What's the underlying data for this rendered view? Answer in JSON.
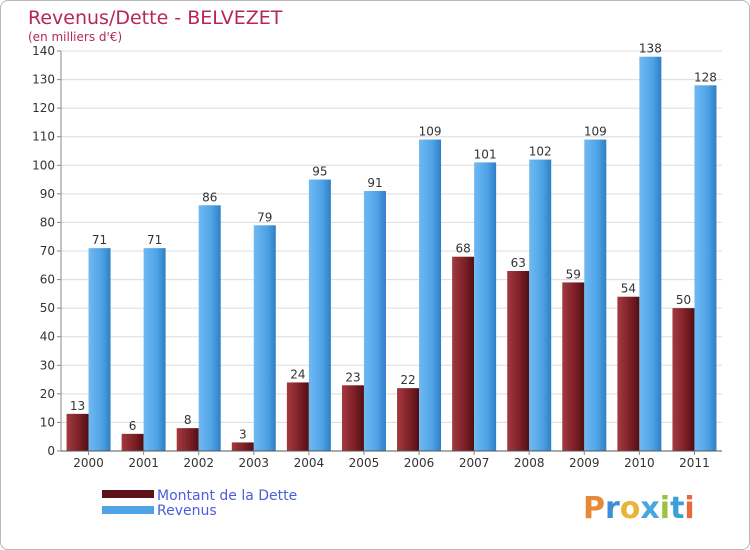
{
  "chart_data": {
    "type": "bar",
    "title": "Revenus/Dette - BELVEZET",
    "subtitle": "(en milliers d'€)",
    "categories": [
      "2000",
      "2001",
      "2002",
      "2003",
      "2004",
      "2005",
      "2006",
      "2007",
      "2008",
      "2009",
      "2010",
      "2011"
    ],
    "series": [
      {
        "name": "Montant de la Dette",
        "values": [
          13,
          6,
          8,
          3,
          24,
          23,
          22,
          68,
          63,
          59,
          54,
          50
        ],
        "color": "#7a1f25"
      },
      {
        "name": "Revenus",
        "values": [
          71,
          71,
          86,
          79,
          95,
          91,
          109,
          101,
          102,
          109,
          138,
          128
        ],
        "color": "#4ea3e6"
      }
    ],
    "ylim": [
      0,
      140
    ],
    "yticks": [
      0,
      10,
      20,
      30,
      40,
      50,
      60,
      70,
      80,
      90,
      100,
      110,
      120,
      130,
      140
    ],
    "grid": true,
    "legend_position": "bottom-left"
  },
  "logo": {
    "text": "Proxiti"
  }
}
